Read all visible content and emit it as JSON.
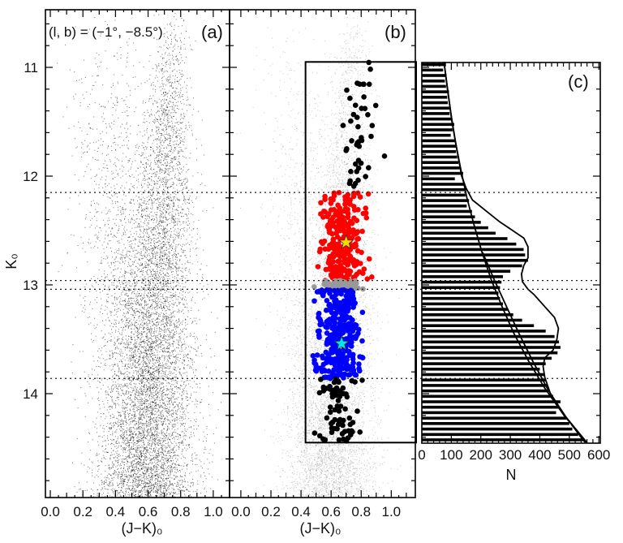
{
  "chart_data": [
    {
      "panel": "(a)",
      "type": "scatter",
      "annotation": "(l, b) = (−1°, −8.5°)",
      "xlabel": "(J−K)₀",
      "ylabel": "K₀",
      "xlim": [
        -0.03,
        1.1
      ],
      "ylim": [
        14.95,
        10.48
      ],
      "xticks": [
        "0.0",
        "0.2",
        "0.4",
        "0.6",
        "0.8",
        "1.0"
      ],
      "yticks": [
        "11",
        "12",
        "13",
        "14"
      ],
      "hlines_dotted": [
        12.15,
        12.96,
        13.04,
        13.86
      ],
      "point_color": "#000000"
    },
    {
      "panel": "(b)",
      "type": "scatter",
      "xlabel": "(J−K)₀",
      "xlim": [
        -0.075,
        1.16
      ],
      "ylim": [
        14.95,
        10.48
      ],
      "xticks": [
        "0.0",
        "0.2",
        "0.4",
        "0.6",
        "0.8",
        "1.0"
      ],
      "hlines_dotted": [
        12.15,
        12.96,
        13.04,
        13.86
      ],
      "selection_box": {
        "jk_min": 0.43,
        "k_min": 10.95,
        "k_max": 14.45
      },
      "selected_groups": [
        {
          "k_range": [
            10.95,
            12.15
          ],
          "color": "#000000"
        },
        {
          "k_range": [
            12.15,
            12.96
          ],
          "color": "#ff0000"
        },
        {
          "k_range": [
            12.96,
            13.04
          ],
          "color": "#999999"
        },
        {
          "k_range": [
            13.04,
            13.86
          ],
          "color": "#0000ff"
        },
        {
          "k_range": [
            13.86,
            14.45
          ],
          "color": "#000000"
        }
      ],
      "star_markers": [
        {
          "jk": 0.7,
          "k": 12.61,
          "color": "#ffd700"
        },
        {
          "jk": 0.67,
          "k": 13.54,
          "color": "#00e5ee"
        }
      ]
    },
    {
      "panel": "(c)",
      "type": "bar",
      "orientation": "horizontal",
      "xlabel": "N",
      "xlim": [
        0,
        605
      ],
      "ylim": [
        14.45,
        10.95
      ],
      "xticks": [
        "0",
        "100",
        "200",
        "300",
        "400",
        "500",
        "600"
      ],
      "bin_width": 0.05,
      "bin_start": 10.95,
      "values": [
        80,
        72,
        84,
        78,
        82,
        92,
        86,
        88,
        96,
        94,
        100,
        110,
        104,
        98,
        112,
        118,
        116,
        120,
        124,
        128,
        140,
        112,
        146,
        150,
        148,
        160,
        152,
        170,
        180,
        200,
        225,
        250,
        290,
        320,
        345,
        350,
        360,
        340,
        300,
        275,
        270,
        265,
        260,
        265,
        275,
        290,
        310,
        340,
        380,
        420,
        450,
        465,
        470,
        460,
        440,
        420,
        400,
        415,
        420,
        425,
        430,
        445,
        470,
        465,
        455,
        490,
        500,
        510,
        530,
        550
      ],
      "fit_total": [
        [
          10.95,
          75
        ],
        [
          11.5,
          102
        ],
        [
          12.0,
          135
        ],
        [
          12.11,
          150
        ],
        [
          12.22,
          172
        ],
        [
          12.32,
          218
        ],
        [
          12.42,
          264
        ],
        [
          12.5,
          308
        ],
        [
          12.57,
          346
        ],
        [
          12.65,
          360
        ],
        [
          12.75,
          360
        ],
        [
          12.82,
          346
        ],
        [
          12.9,
          338
        ],
        [
          12.97,
          341
        ],
        [
          13.04,
          360
        ],
        [
          13.09,
          381
        ],
        [
          13.2,
          417
        ],
        [
          13.3,
          450
        ],
        [
          13.4,
          463
        ],
        [
          13.5,
          458
        ],
        [
          13.6,
          445
        ],
        [
          13.67,
          417
        ],
        [
          13.75,
          411
        ],
        [
          13.85,
          417
        ],
        [
          14.0,
          436
        ],
        [
          14.22,
          490
        ],
        [
          14.42,
          545
        ],
        [
          14.45,
          555
        ]
      ],
      "fit_background": [
        [
          10.95,
          75
        ],
        [
          11.2,
          87
        ],
        [
          11.45,
          100
        ],
        [
          11.7,
          115
        ],
        [
          11.95,
          133
        ],
        [
          12.2,
          153
        ],
        [
          12.45,
          177
        ],
        [
          12.7,
          204
        ],
        [
          12.95,
          235
        ],
        [
          13.2,
          272
        ],
        [
          13.45,
          313
        ],
        [
          13.7,
          362
        ],
        [
          13.95,
          417
        ],
        [
          14.2,
          482
        ],
        [
          14.45,
          560
        ]
      ],
      "fit_background_alt": [
        [
          12.7,
          206
        ],
        [
          12.95,
          245
        ],
        [
          13.2,
          287
        ],
        [
          13.45,
          330
        ],
        [
          13.7,
          376
        ],
        [
          13.95,
          425
        ],
        [
          14.2,
          484
        ],
        [
          14.45,
          560
        ]
      ],
      "hlines_dotted": [
        12.15,
        12.96,
        13.04,
        13.86
      ]
    }
  ]
}
